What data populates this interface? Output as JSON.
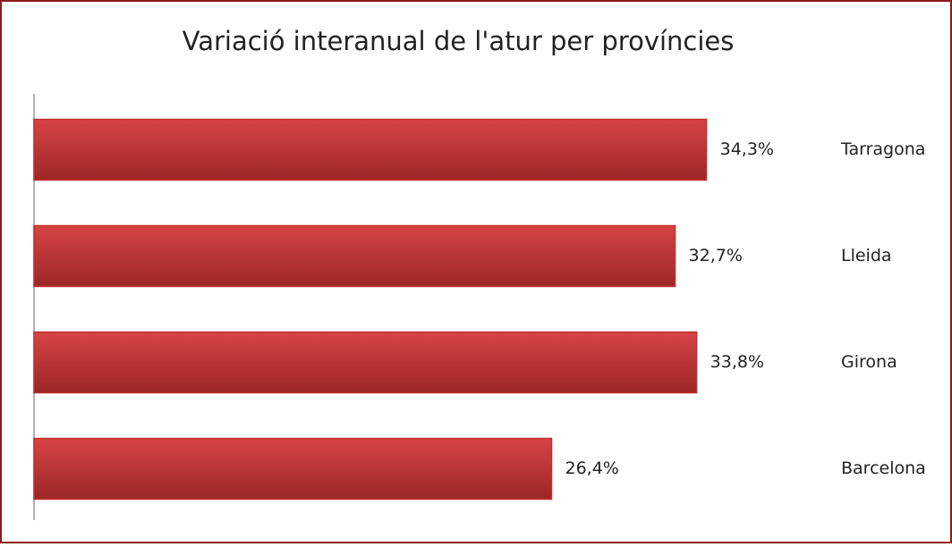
{
  "chart_data": {
    "type": "bar",
    "orientation": "horizontal",
    "title": "Variació interanual de l'atur per províncies",
    "categories": [
      "Tarragona",
      "Lleida",
      "Girona",
      "Barcelona"
    ],
    "values": [
      34.3,
      32.7,
      33.8,
      26.4
    ],
    "value_labels": [
      "34,3%",
      "32,7%",
      "33,8%",
      "26,4%"
    ],
    "color": "#c0302e",
    "xlim": [
      0,
      46
    ]
  }
}
